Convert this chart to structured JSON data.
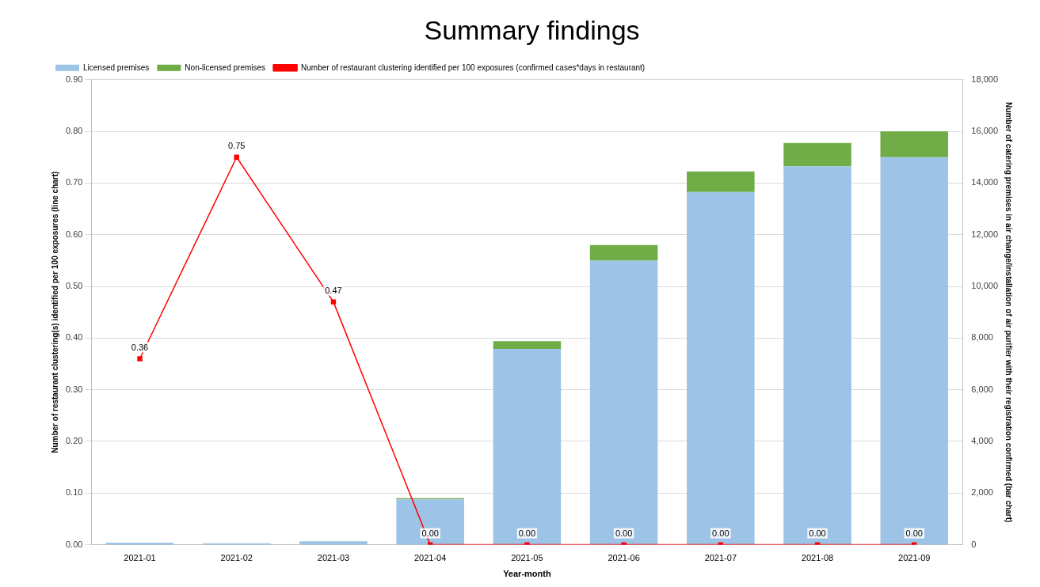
{
  "chart_data": {
    "type": "bar",
    "title": "Summary findings",
    "xlabel": "Year-month",
    "ylabel": "Number of restaurant clustering(s) identified per 100 exposures (line chart)",
    "y2label": "Number of catering premises in air change/installation of air purifier with their registration confirmed (bar chart)",
    "categories": [
      "2021-01",
      "2021-02",
      "2021-03",
      "2021-04",
      "2021-05",
      "2021-06",
      "2021-07",
      "2021-08",
      "2021-09"
    ],
    "stacked": true,
    "legend": "top left",
    "grid": "y",
    "marker": "square",
    "line_style": "solid",
    "ylim": [
      0,
      0.9
    ],
    "yticks": [
      {
        "value": 0,
        "label": "0.00"
      },
      {
        "value": 0.1,
        "label": "0.10"
      },
      {
        "value": 0.2,
        "label": "0.20"
      },
      {
        "value": 0.3,
        "label": "0.30"
      },
      {
        "value": 0.4,
        "label": "0.40"
      },
      {
        "value": 0.5,
        "label": "0.50"
      },
      {
        "value": 0.6,
        "label": "0.60"
      },
      {
        "value": 0.7,
        "label": "0.70"
      },
      {
        "value": 0.8,
        "label": "0.80"
      },
      {
        "value": 0.9,
        "label": "0.90"
      }
    ],
    "y2lim": [
      0,
      18000
    ],
    "y2ticks": [
      0,
      {
        "value": 2000,
        "label": "2,000"
      },
      {
        "value": 4000,
        "label": "4,000"
      },
      {
        "value": 6000,
        "label": "6,000"
      },
      {
        "value": 8000,
        "label": "8,000"
      },
      {
        "value": 10000,
        "label": "10,000"
      },
      {
        "value": 12000,
        "label": "12,000"
      },
      {
        "value": 14000,
        "label": "14,000"
      },
      {
        "value": 16000,
        "label": "16,000"
      },
      {
        "value": 18000,
        "label": "18,000"
      }
    ],
    "series": [
      {
        "name": "Licensed premises",
        "axis": "y2",
        "color": "#9dc3e6",
        "values": [
          80,
          60,
          130,
          1760,
          7580,
          11000,
          13650,
          14650,
          15000
        ]
      },
      {
        "name": "Non-licensed premises",
        "axis": "y2",
        "color": "#70ad47",
        "values": [
          0,
          0,
          0,
          40,
          300,
          600,
          800,
          900,
          1000
        ]
      },
      {
        "name": "Number of restaurant clustering identified per 100 exposures (confirmed cases*days in restaurant)",
        "type": "line",
        "color": "#ff0000",
        "values": [
          0.36,
          0.75,
          0.47,
          0,
          0,
          0,
          0,
          0,
          0
        ],
        "value_labels": [
          "0.36",
          "0.75",
          "0.47",
          "0.00",
          "0.00",
          "0.00",
          "0.00",
          "0.00",
          "0.00"
        ]
      }
    ]
  }
}
